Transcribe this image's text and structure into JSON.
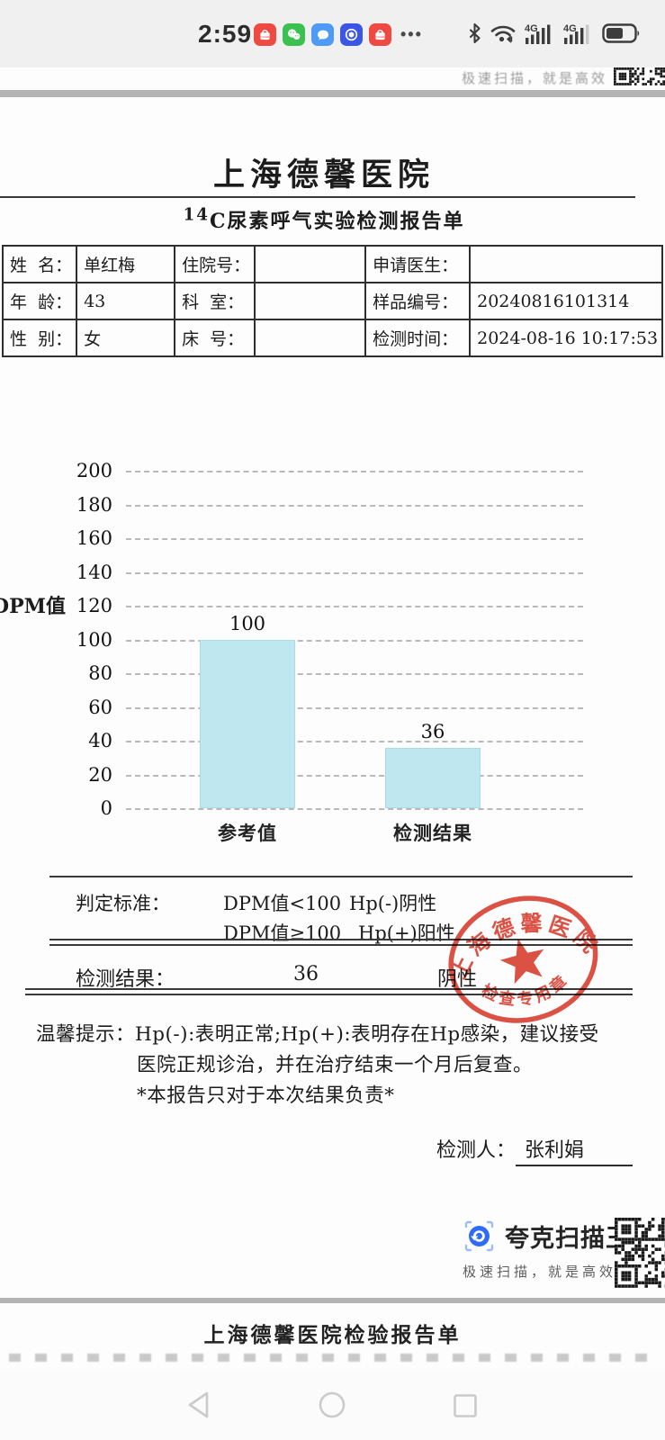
{
  "status_bar": {
    "time": "2:59",
    "more_dots": "•••",
    "notification_icons": [
      "huawei-appgallery",
      "wechat",
      "messages",
      "health-blue",
      "huawei-appgallery"
    ],
    "system_icons": [
      "bluetooth",
      "wifi",
      "4g-signal-full",
      "4g-signal-partial",
      "battery-60"
    ]
  },
  "prev_page_footer": {
    "tagline": "极速扫描，就是高效"
  },
  "document": {
    "hospital_name": "上海德馨医院",
    "report_title_sup": "14",
    "report_title_rest": "C尿素呼气实验检测报告单",
    "patient_table": {
      "rows": [
        [
          {
            "label": "姓  名：",
            "value": "单红梅"
          },
          {
            "label": "住院号：",
            "value": ""
          },
          {
            "label": "申请医生：",
            "value": ""
          }
        ],
        [
          {
            "label": "年  龄：",
            "value": "43"
          },
          {
            "label": "科  室：",
            "value": ""
          },
          {
            "label": "样品编号：",
            "value": "20240816101314"
          }
        ],
        [
          {
            "label": "性  别：",
            "value": "女"
          },
          {
            "label": "床  号：",
            "value": ""
          },
          {
            "label": "检测时间：",
            "value": "2024-08-16 10:17:53"
          }
        ]
      ]
    },
    "criteria": {
      "label": "判定标准：",
      "rule1_condition": "DPM值<100",
      "rule1_result": "Hp(-)阴性",
      "rule2_condition": "DPM值≥100",
      "rule2_result": "Hp(+)阳性",
      "result_label": "检测结果：",
      "result_value": "36",
      "result_judgement": "阴性"
    },
    "stamp": {
      "line1": "上海德馨医院",
      "line2": "检查专用章",
      "color": "#d93a2b"
    },
    "tips": {
      "prefix": "温馨提示：",
      "line1": "Hp(-):表明正常;Hp(+):表明存在Hp感染，建议接受",
      "line2": "医院正规诊治，并在治疗结束一个月后复查。",
      "line3": "*本报告只对于本次结果负责*"
    },
    "examiner": {
      "label": "检测人：",
      "name": "张利娟"
    }
  },
  "chart_data": {
    "type": "bar",
    "categories": [
      "参考值",
      "检测结果"
    ],
    "values": [
      100,
      36
    ],
    "title": "",
    "xlabel": "",
    "ylabel": "DPM值",
    "ylim": [
      0,
      200
    ],
    "ytick_step": 20,
    "bar_color": "#bfe7f0",
    "grid": "dashed-horizontal",
    "legend": "none"
  },
  "watermark": {
    "app_name": "夸克扫描王",
    "tagline": "极速扫描，就是高效",
    "brand_color": "#2f6bf4"
  },
  "next_page": {
    "title": "上海德馨医院检验报告单"
  },
  "nav_bar": {
    "icons": [
      "back",
      "home",
      "recents"
    ]
  }
}
